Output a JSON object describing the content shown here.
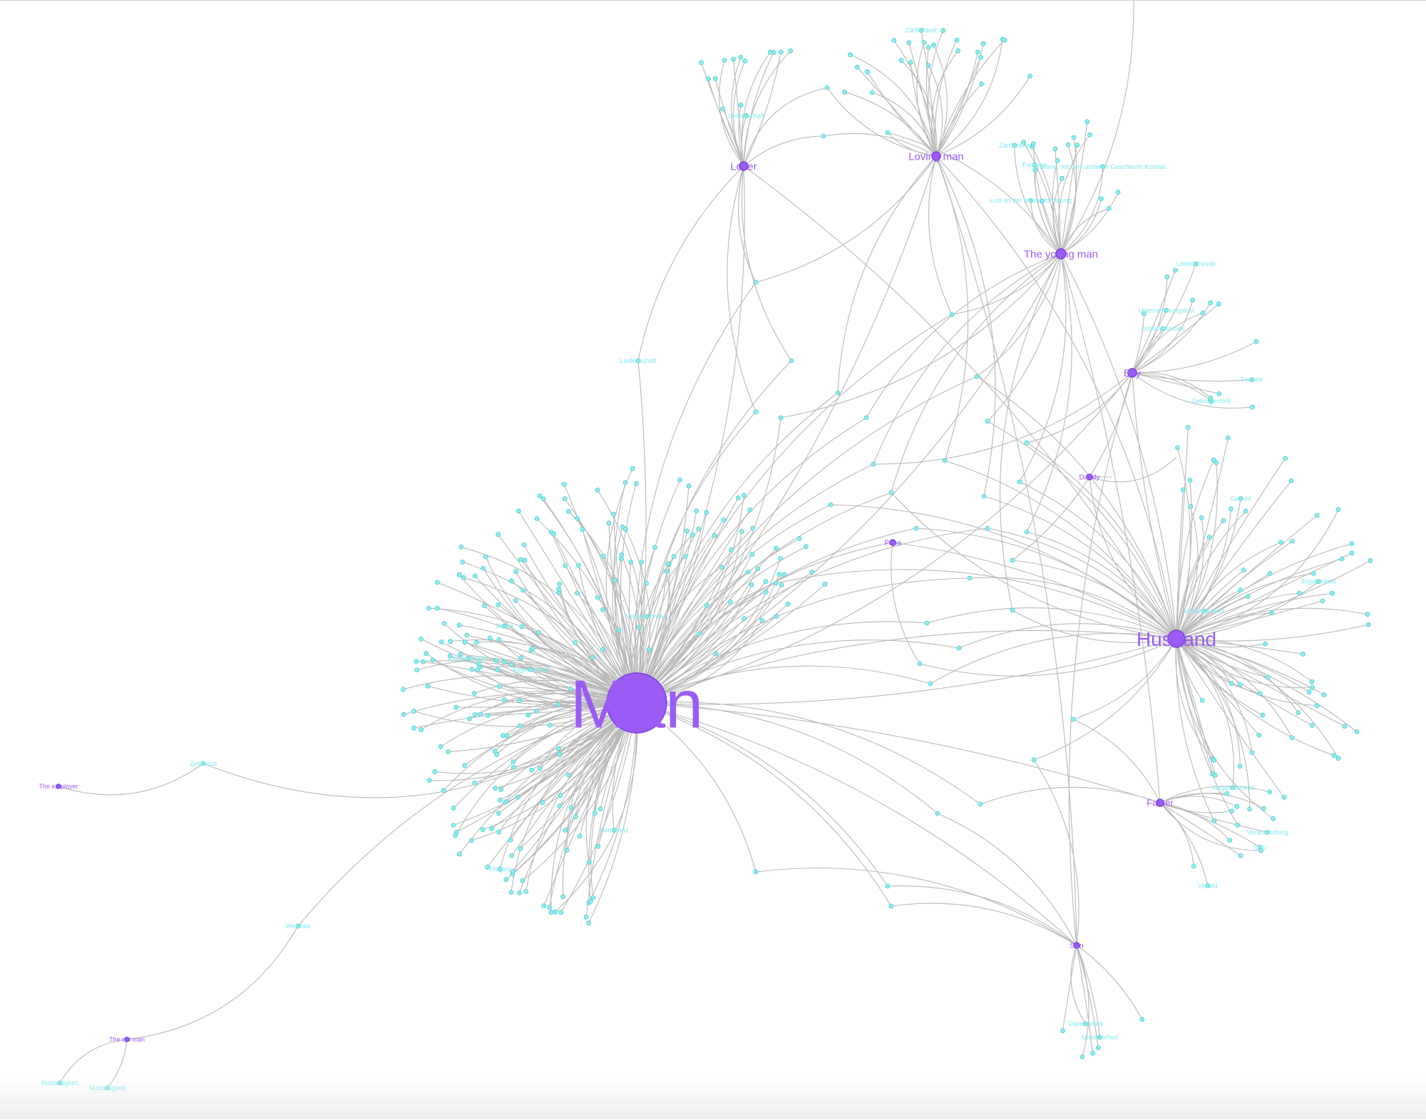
{
  "hubs": [
    {
      "id": "man",
      "label": "Man"
    },
    {
      "id": "husband",
      "label": "Husband"
    },
    {
      "id": "lover",
      "label": "Lover"
    },
    {
      "id": "loving_man",
      "label": "Loving man"
    },
    {
      "id": "young_man",
      "label": "The young man"
    },
    {
      "id": "boy",
      "label": "Boy"
    },
    {
      "id": "father",
      "label": "Father"
    },
    {
      "id": "son",
      "label": "Son"
    },
    {
      "id": "daddy",
      "label": "Daddy"
    },
    {
      "id": "papa",
      "label": "Papa"
    },
    {
      "id": "employer",
      "label": "The employer"
    },
    {
      "id": "old_man",
      "label": "The old man"
    }
  ],
  "legible_labels": {
    "young_man": [
      "Lust an der Herausforderung",
      "Zärtlichkeit",
      "Fantasie",
      "Drang, mit dem anderen Geschlecht Kontakt"
    ],
    "boy": [
      "Unternehmungslust",
      "Freiheit",
      "Lebensfreude",
      "Schüchternheit",
      "Geborgenheit"
    ],
    "husband": [
      "Ergebenheit",
      "Geduld",
      "Verlässlichkeit",
      "Vergesslichkeit"
    ],
    "father": [
      "Verantwortung",
      "Stolz",
      "Vorbild"
    ],
    "son": [
      "Dankbarkeit",
      "Unsicherheit"
    ],
    "man": [
      "Dominanz",
      "Ehrgeiz",
      "Aggressivität",
      "Zielstrebigkeit",
      "Stärke",
      "Verlässlichkeit"
    ],
    "employer": [
      "Zynismus"
    ],
    "old_man": [
      "Nutzlosigkeit",
      "Weisheit"
    ],
    "loving_man": [
      "Zärtlichkeit"
    ],
    "lover": [
      "Leidenschaft"
    ]
  }
}
